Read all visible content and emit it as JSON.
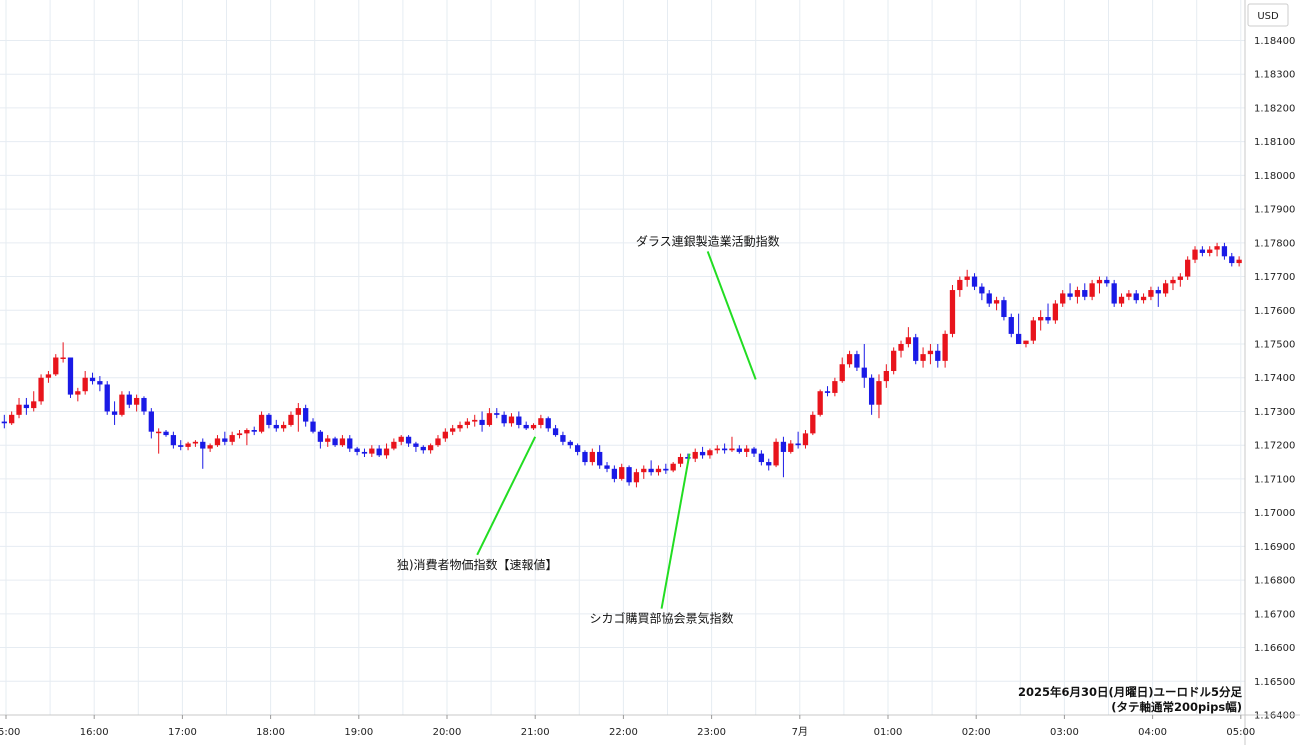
{
  "chart_data": {
    "type": "candlestick",
    "currency_label": "USD",
    "footer": [
      "2025年6月30日(月曜日)ユーロドル5分足",
      "(タテ軸通常200pips幅)"
    ],
    "ylim": [
      1.164,
      1.1852
    ],
    "y_ticks": [
      "1.18400",
      "1.18300",
      "1.18200",
      "1.18100",
      "1.18000",
      "1.17900",
      "1.17800",
      "1.17700",
      "1.17600",
      "1.17500",
      "1.17400",
      "1.17300",
      "1.17200",
      "1.17100",
      "1.17000",
      "1.16900",
      "1.16800",
      "1.16700",
      "1.16600",
      "1.16500",
      "1.16400"
    ],
    "x_ticks": [
      {
        "label": "15:00",
        "hour": 0
      },
      {
        "label": "16:00",
        "hour": 1
      },
      {
        "label": "17:00",
        "hour": 2
      },
      {
        "label": "18:00",
        "hour": 3
      },
      {
        "label": "19:00",
        "hour": 4
      },
      {
        "label": "20:00",
        "hour": 5
      },
      {
        "label": "21:00",
        "hour": 6
      },
      {
        "label": "22:00",
        "hour": 7
      },
      {
        "label": "23:00",
        "hour": 8
      },
      {
        "label": "7月",
        "hour": 9
      },
      {
        "label": "01:00",
        "hour": 10
      },
      {
        "label": "02:00",
        "hour": 11
      },
      {
        "label": "03:00",
        "hour": 12
      },
      {
        "label": "04:00",
        "hour": 13
      },
      {
        "label": "05:00",
        "hour": 14
      }
    ],
    "up_color": "#e8141c",
    "down_color": "#1a1ae6",
    "annotation_color": "#22dd22",
    "candles": [
      [
        1.17255,
        1.1729,
        1.1722,
        1.1725
      ],
      [
        1.1725,
        1.17265,
        1.1722,
        1.1723
      ],
      [
        1.1723,
        1.1728,
        1.17225,
        1.1727
      ],
      [
        1.1727,
        1.17295,
        1.1723,
        1.1725
      ],
      [
        1.1725,
        1.1729,
        1.17205,
        1.1727
      ],
      [
        1.1727,
        1.1729,
        1.1725,
        1.17265
      ],
      [
        1.17265,
        1.173,
        1.1726,
        1.1729
      ],
      [
        1.1729,
        1.1734,
        1.1728,
        1.1732
      ],
      [
        1.1732,
        1.1734,
        1.1729,
        1.1731
      ],
      [
        1.1731,
        1.1736,
        1.173,
        1.1733
      ],
      [
        1.1733,
        1.1741,
        1.1732,
        1.174
      ],
      [
        1.174,
        1.1742,
        1.17385,
        1.1741
      ],
      [
        1.1741,
        1.1747,
        1.17405,
        1.1746
      ],
      [
        1.1746,
        1.17505,
        1.17445,
        1.1746
      ],
      [
        1.1746,
        1.1746,
        1.1734,
        1.1735
      ],
      [
        1.1735,
        1.1737,
        1.1733,
        1.1736
      ],
      [
        1.1736,
        1.1742,
        1.1735,
        1.174
      ],
      [
        1.174,
        1.17415,
        1.1738,
        1.1739
      ],
      [
        1.1739,
        1.17405,
        1.1736,
        1.1738
      ],
      [
        1.1738,
        1.1739,
        1.1729,
        1.173
      ],
      [
        1.173,
        1.1733,
        1.1726,
        1.1729
      ],
      [
        1.1729,
        1.1736,
        1.17285,
        1.1735
      ],
      [
        1.1735,
        1.1736,
        1.1731,
        1.1732
      ],
      [
        1.1732,
        1.1735,
        1.173,
        1.1734
      ],
      [
        1.1734,
        1.17345,
        1.1729,
        1.173
      ],
      [
        1.173,
        1.1731,
        1.1722,
        1.1724
      ],
      [
        1.1724,
        1.1725,
        1.17175,
        1.1724
      ],
      [
        1.1724,
        1.17245,
        1.17225,
        1.1723
      ],
      [
        1.1723,
        1.1724,
        1.1719,
        1.172
      ],
      [
        1.172,
        1.17215,
        1.17185,
        1.17195
      ],
      [
        1.17195,
        1.1721,
        1.17185,
        1.17205
      ],
      [
        1.17205,
        1.17215,
        1.17195,
        1.1721
      ],
      [
        1.1721,
        1.1722,
        1.1713,
        1.1719
      ],
      [
        1.1719,
        1.17205,
        1.1718,
        1.172
      ],
      [
        1.172,
        1.1723,
        1.17195,
        1.1722
      ],
      [
        1.1722,
        1.1724,
        1.172,
        1.1721
      ],
      [
        1.1721,
        1.1724,
        1.172,
        1.1723
      ],
      [
        1.1723,
        1.17245,
        1.1722,
        1.17235
      ],
      [
        1.17235,
        1.1725,
        1.172,
        1.17245
      ],
      [
        1.17245,
        1.17255,
        1.1723,
        1.1724
      ],
      [
        1.1724,
        1.173,
        1.17235,
        1.1729
      ],
      [
        1.1729,
        1.17295,
        1.1725,
        1.1726
      ],
      [
        1.1726,
        1.17275,
        1.1724,
        1.1725
      ],
      [
        1.1725,
        1.1727,
        1.1724,
        1.1726
      ],
      [
        1.1726,
        1.173,
        1.17255,
        1.1729
      ],
      [
        1.1729,
        1.17325,
        1.1724,
        1.1731
      ],
      [
        1.1731,
        1.1732,
        1.17255,
        1.1727
      ],
      [
        1.1727,
        1.1728,
        1.17235,
        1.1724
      ],
      [
        1.1724,
        1.17245,
        1.1719,
        1.1721
      ],
      [
        1.1721,
        1.1723,
        1.17195,
        1.1722
      ],
      [
        1.1722,
        1.17225,
        1.17195,
        1.172
      ],
      [
        1.172,
        1.1723,
        1.17195,
        1.1722
      ],
      [
        1.1722,
        1.1723,
        1.1718,
        1.1719
      ],
      [
        1.1719,
        1.17195,
        1.1717,
        1.1718
      ],
      [
        1.1718,
        1.1719,
        1.17165,
        1.17175
      ],
      [
        1.17175,
        1.172,
        1.17165,
        1.1719
      ],
      [
        1.1719,
        1.172,
        1.17165,
        1.1717
      ],
      [
        1.1717,
        1.17205,
        1.1716,
        1.1719
      ],
      [
        1.1719,
        1.1722,
        1.17185,
        1.1721
      ],
      [
        1.1721,
        1.1723,
        1.172,
        1.17225
      ],
      [
        1.17225,
        1.1723,
        1.17195,
        1.17205
      ],
      [
        1.17205,
        1.1721,
        1.1718,
        1.17195
      ],
      [
        1.17195,
        1.172,
        1.17175,
        1.17185
      ],
      [
        1.17185,
        1.17205,
        1.17175,
        1.172
      ],
      [
        1.172,
        1.1723,
        1.17195,
        1.1722
      ],
      [
        1.1722,
        1.1725,
        1.1721,
        1.1724
      ],
      [
        1.1724,
        1.1726,
        1.1723,
        1.1725
      ],
      [
        1.1725,
        1.1727,
        1.1724,
        1.1726
      ],
      [
        1.1726,
        1.1728,
        1.1725,
        1.1727
      ],
      [
        1.1727,
        1.1729,
        1.17255,
        1.17275
      ],
      [
        1.17275,
        1.173,
        1.1724,
        1.1726
      ],
      [
        1.1726,
        1.1731,
        1.17255,
        1.17295
      ],
      [
        1.17295,
        1.1731,
        1.1728,
        1.1729
      ],
      [
        1.1729,
        1.173,
        1.17255,
        1.17265
      ],
      [
        1.17265,
        1.17295,
        1.17255,
        1.17285
      ],
      [
        1.17285,
        1.173,
        1.1725,
        1.1726
      ],
      [
        1.1726,
        1.1727,
        1.17245,
        1.1725
      ],
      [
        1.1725,
        1.17265,
        1.17245,
        1.1726
      ],
      [
        1.1726,
        1.1729,
        1.1725,
        1.1728
      ],
      [
        1.1728,
        1.17285,
        1.1724,
        1.1725
      ],
      [
        1.1725,
        1.1726,
        1.17225,
        1.1723
      ],
      [
        1.1723,
        1.1724,
        1.172,
        1.1721
      ],
      [
        1.1721,
        1.17215,
        1.1719,
        1.172
      ],
      [
        1.172,
        1.17205,
        1.1717,
        1.1718
      ],
      [
        1.1718,
        1.17185,
        1.1714,
        1.1715
      ],
      [
        1.1715,
        1.1719,
        1.1714,
        1.1718
      ],
      [
        1.1718,
        1.172,
        1.1713,
        1.1714
      ],
      [
        1.1714,
        1.1715,
        1.1712,
        1.1713
      ],
      [
        1.1713,
        1.1714,
        1.1709,
        1.171
      ],
      [
        1.171,
        1.17145,
        1.17095,
        1.17135
      ],
      [
        1.17135,
        1.1714,
        1.1708,
        1.1709
      ],
      [
        1.1709,
        1.1713,
        1.17075,
        1.1712
      ],
      [
        1.1712,
        1.1714,
        1.171,
        1.1713
      ],
      [
        1.1713,
        1.17155,
        1.1711,
        1.1712
      ],
      [
        1.1712,
        1.1714,
        1.1711,
        1.1713
      ],
      [
        1.1713,
        1.17145,
        1.17115,
        1.17125
      ],
      [
        1.17125,
        1.1715,
        1.1712,
        1.17145
      ],
      [
        1.17145,
        1.17175,
        1.17135,
        1.17165
      ],
      [
        1.17165,
        1.17175,
        1.1715,
        1.1716
      ],
      [
        1.1716,
        1.1719,
        1.1715,
        1.1718
      ],
      [
        1.1718,
        1.17195,
        1.1716,
        1.1717
      ],
      [
        1.1717,
        1.1719,
        1.1716,
        1.17185
      ],
      [
        1.17185,
        1.172,
        1.17175,
        1.1719
      ],
      [
        1.1719,
        1.17205,
        1.17175,
        1.17185
      ],
      [
        1.17185,
        1.17225,
        1.1718,
        1.1719
      ],
      [
        1.1719,
        1.172,
        1.17175,
        1.1718
      ],
      [
        1.1718,
        1.172,
        1.17165,
        1.1719
      ],
      [
        1.1719,
        1.17195,
        1.17165,
        1.17175
      ],
      [
        1.17175,
        1.17185,
        1.1714,
        1.1715
      ],
      [
        1.1715,
        1.1716,
        1.17125,
        1.1714
      ],
      [
        1.1714,
        1.1722,
        1.17135,
        1.1721
      ],
      [
        1.1721,
        1.17225,
        1.17105,
        1.1718
      ],
      [
        1.1718,
        1.17215,
        1.17175,
        1.17205
      ],
      [
        1.17205,
        1.1724,
        1.1719,
        1.172
      ],
      [
        1.172,
        1.17245,
        1.1719,
        1.17235
      ],
      [
        1.17235,
        1.173,
        1.1723,
        1.1729
      ],
      [
        1.1729,
        1.17365,
        1.17285,
        1.1736
      ],
      [
        1.1736,
        1.17375,
        1.17345,
        1.17355
      ],
      [
        1.17355,
        1.174,
        1.17345,
        1.1739
      ],
      [
        1.1739,
        1.1746,
        1.17385,
        1.1744
      ],
      [
        1.1744,
        1.1748,
        1.1743,
        1.1747
      ],
      [
        1.1747,
        1.1748,
        1.1742,
        1.1743
      ],
      [
        1.1743,
        1.175,
        1.1737,
        1.174
      ],
      [
        1.174,
        1.1741,
        1.1729,
        1.1732
      ],
      [
        1.1732,
        1.1741,
        1.1728,
        1.1739
      ],
      [
        1.1739,
        1.1744,
        1.1737,
        1.1742
      ],
      [
        1.1742,
        1.1749,
        1.1741,
        1.1748
      ],
      [
        1.1748,
        1.1751,
        1.1746,
        1.175
      ],
      [
        1.175,
        1.1755,
        1.1749,
        1.1752
      ],
      [
        1.1752,
        1.1753,
        1.1744,
        1.1745
      ],
      [
        1.1745,
        1.1749,
        1.1743,
        1.1747
      ],
      [
        1.1747,
        1.175,
        1.1744,
        1.1748
      ],
      [
        1.1748,
        1.175,
        1.1743,
        1.1745
      ],
      [
        1.1745,
        1.1754,
        1.1743,
        1.1753
      ],
      [
        1.1753,
        1.17675,
        1.1752,
        1.1766
      ],
      [
        1.1766,
        1.177,
        1.1764,
        1.1769
      ],
      [
        1.1769,
        1.1772,
        1.1767,
        1.177
      ],
      [
        1.177,
        1.1771,
        1.1766,
        1.1767
      ],
      [
        1.1767,
        1.1768,
        1.1763,
        1.1765
      ],
      [
        1.1765,
        1.1766,
        1.1761,
        1.1762
      ],
      [
        1.1762,
        1.1764,
        1.176,
        1.1763
      ],
      [
        1.1763,
        1.1764,
        1.1757,
        1.1758
      ],
      [
        1.1758,
        1.1759,
        1.1752,
        1.1753
      ],
      [
        1.1753,
        1.1759,
        1.1751,
        1.175
      ],
      [
        1.175,
        1.1751,
        1.1749,
        1.1751
      ],
      [
        1.1751,
        1.1758,
        1.175,
        1.1757
      ],
      [
        1.1757,
        1.176,
        1.1754,
        1.1758
      ],
      [
        1.1758,
        1.1762,
        1.1756,
        1.1757
      ],
      [
        1.1757,
        1.1763,
        1.1756,
        1.1762
      ],
      [
        1.1762,
        1.1766,
        1.1761,
        1.1765
      ],
      [
        1.1765,
        1.1768,
        1.1763,
        1.1764
      ],
      [
        1.1764,
        1.1767,
        1.1762,
        1.1766
      ],
      [
        1.1766,
        1.1768,
        1.1763,
        1.1764
      ],
      [
        1.1764,
        1.1769,
        1.1763,
        1.1768
      ],
      [
        1.1768,
        1.177,
        1.1765,
        1.1769
      ],
      [
        1.1769,
        1.177,
        1.1767,
        1.1768
      ],
      [
        1.1768,
        1.1769,
        1.1761,
        1.1762
      ],
      [
        1.1762,
        1.1765,
        1.1761,
        1.1764
      ],
      [
        1.1764,
        1.1766,
        1.1763,
        1.1765
      ],
      [
        1.1765,
        1.1766,
        1.1762,
        1.1763
      ],
      [
        1.1763,
        1.1765,
        1.1762,
        1.1764
      ],
      [
        1.1764,
        1.1767,
        1.1763,
        1.1766
      ],
      [
        1.1766,
        1.1767,
        1.1761,
        1.1765
      ],
      [
        1.1765,
        1.1769,
        1.1764,
        1.1768
      ],
      [
        1.1768,
        1.177,
        1.1766,
        1.1769
      ],
      [
        1.1769,
        1.1771,
        1.1767,
        1.177
      ],
      [
        1.177,
        1.1776,
        1.1769,
        1.1775
      ],
      [
        1.1775,
        1.1779,
        1.1774,
        1.1778
      ],
      [
        1.1778,
        1.1779,
        1.1776,
        1.1777
      ],
      [
        1.1777,
        1.1779,
        1.1776,
        1.1778
      ],
      [
        1.1778,
        1.178,
        1.1776,
        1.1779
      ],
      [
        1.1779,
        1.178,
        1.1775,
        1.1776
      ],
      [
        1.1776,
        1.1777,
        1.1773,
        1.1774
      ],
      [
        1.1774,
        1.1776,
        1.1773,
        1.1775
      ],
      [
        1.1775,
        1.1777,
        1.1774,
        1.1776
      ],
      [
        1.1776,
        1.1777,
        1.1772,
        1.1774
      ],
      [
        1.1774,
        1.1779,
        1.1773,
        1.1778
      ],
      [
        1.1778,
        1.1779,
        1.1775,
        1.1776
      ],
      [
        1.1776,
        1.1779,
        1.1775,
        1.1777
      ],
      [
        1.1777,
        1.1778,
        1.1775,
        1.1776
      ],
      [
        1.1776,
        1.1778,
        1.1775,
        1.1777
      ],
      [
        1.1777,
        1.1778,
        1.1774,
        1.1775
      ],
      [
        1.1775,
        1.1776,
        1.1774,
        1.17745
      ],
      [
        1.17745,
        1.1776,
        1.17735,
        1.1775
      ],
      [
        1.1775,
        1.1777,
        1.1774,
        1.1776
      ],
      [
        1.1776,
        1.1778,
        1.1775,
        1.1777
      ],
      [
        1.1777,
        1.1779,
        1.1776,
        1.1778
      ],
      [
        1.1778,
        1.1779,
        1.1776,
        1.1777
      ],
      [
        1.1777,
        1.178,
        1.1776,
        1.1779
      ],
      [
        1.1779,
        1.178,
        1.1777,
        1.1778
      ]
    ],
    "annotations": [
      {
        "text": "独)消費者物価指数【速報値】",
        "hour": 6.0,
        "price": 1.17225
      },
      {
        "text": "シカゴ購買部協会景気指数",
        "hour": 7.75,
        "price": 1.17175
      },
      {
        "text": "ダラス連銀製造業活動指数",
        "hour": 8.5,
        "price": 1.17395
      }
    ]
  }
}
